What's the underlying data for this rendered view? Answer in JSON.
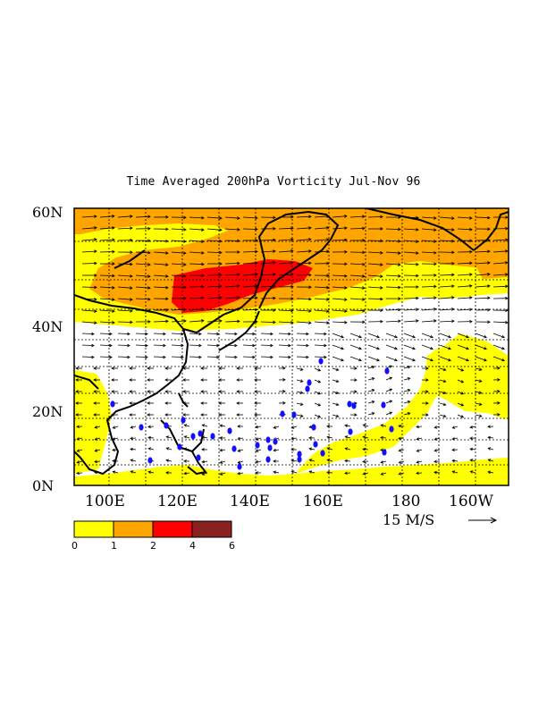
{
  "title": "Time Averaged 200hPa Vorticity Jul-Nov 96",
  "lat_labels": [
    "60N",
    "40N",
    "20N",
    "0N"
  ],
  "lon_labels": [
    "100E",
    "120E",
    "140E",
    "160E",
    "180",
    "160W"
  ],
  "reference_vector": {
    "label": "15 M/S"
  },
  "colorbar": {
    "ticks": [
      "0",
      "1",
      "2",
      "4",
      "6"
    ],
    "colors": [
      "#ffff00",
      "#ffa500",
      "#ff0000",
      "#8b2020"
    ]
  }
}
